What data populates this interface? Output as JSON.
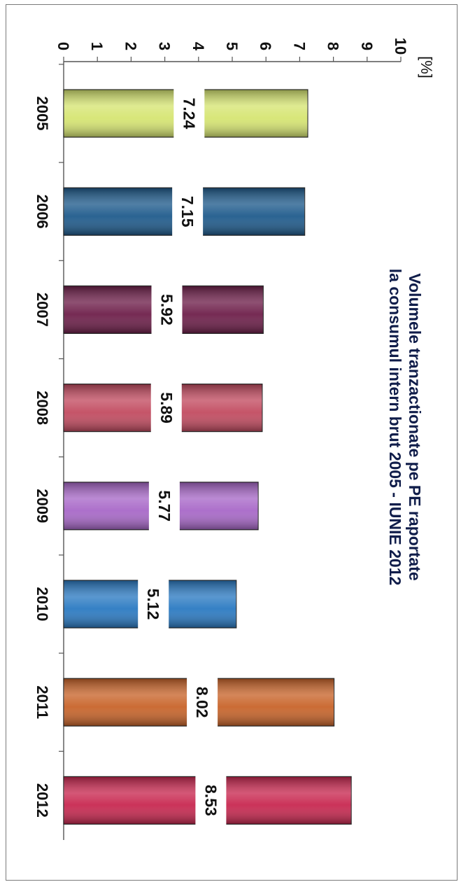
{
  "chart_data": {
    "type": "bar",
    "orientation": "rotated-90-clockwise",
    "title_lines": [
      "Volumele tranzactionate pe PE raportate",
      "la consumul intern brut 2005 - IUNIE 2012"
    ],
    "ylabel": "[%]",
    "xlabel": "",
    "ylim": [
      0,
      10
    ],
    "yticks": [
      "0",
      "1",
      "2",
      "3",
      "4",
      "5",
      "6",
      "7",
      "8",
      "9",
      "10"
    ],
    "categories": [
      "2005",
      "2006",
      "2007",
      "2008",
      "2009",
      "2010",
      "2011",
      "2012"
    ],
    "values": [
      7.24,
      7.15,
      5.92,
      5.89,
      5.77,
      5.12,
      8.02,
      8.53
    ],
    "value_labels": [
      "7.24",
      "7.15",
      "5.92",
      "5.89",
      "5.77",
      "5.12",
      "8.02",
      "8.53"
    ],
    "colors": [
      "#d6e572",
      "#1f5b8c",
      "#6e1f4a",
      "#c24b60",
      "#a868c8",
      "#2b7ac2",
      "#c8642a",
      "#c82850"
    ],
    "grid": false,
    "legend": "none"
  }
}
